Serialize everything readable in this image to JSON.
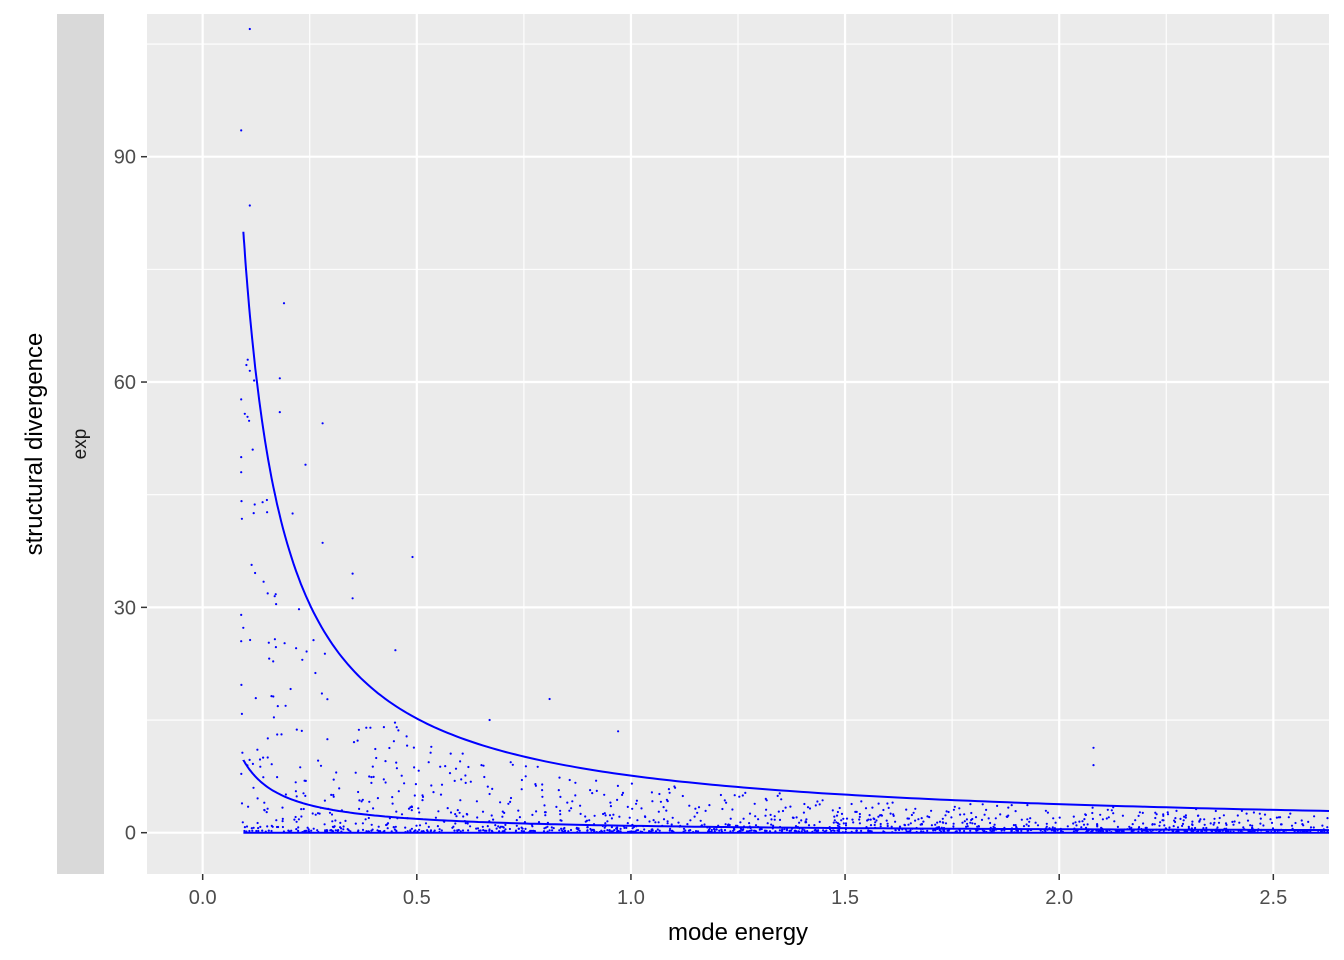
{
  "chart_data": {
    "type": "scatter",
    "facet_strip": "exp",
    "xlabel": "mode energy",
    "ylabel": "structural divergence",
    "xlim": [
      -0.13,
      2.63
    ],
    "ylim": [
      -5.5,
      109
    ],
    "x_ticks": [
      0.0,
      0.5,
      1.0,
      1.5,
      2.0,
      2.5
    ],
    "x_tick_labels": [
      "0.0",
      "0.5",
      "1.0",
      "1.5",
      "2.0",
      "2.5"
    ],
    "y_ticks": [
      0,
      30,
      60,
      90
    ],
    "y_tick_labels": [
      "0",
      "30",
      "60",
      "90"
    ],
    "grid": true,
    "background": "#ebebeb",
    "strip_color": "#d9d9d9",
    "point_color": "#0000ff",
    "line_color": "#0000ff",
    "curves": [
      {
        "x_start": 0.095,
        "x_end": 2.63,
        "formula": "7.6 / x",
        "note_y_at_start": 80
      },
      {
        "x_start": 0.095,
        "x_end": 2.63,
        "formula": "0.92 / x",
        "note_y_at_start": 9.7
      },
      {
        "x_start": 0.095,
        "x_end": 2.63,
        "formula": "0",
        "note_y_at_start": 0
      }
    ],
    "highlight_points": [
      {
        "x": 0.11,
        "y": 107
      },
      {
        "x": 0.09,
        "y": 93.5
      },
      {
        "x": 0.11,
        "y": 83.5
      },
      {
        "x": 0.19,
        "y": 70.5
      },
      {
        "x": 0.18,
        "y": 60.5
      },
      {
        "x": 0.11,
        "y": 61.5
      },
      {
        "x": 0.12,
        "y": 60.2
      },
      {
        "x": 0.18,
        "y": 56
      },
      {
        "x": 0.28,
        "y": 54.5
      },
      {
        "x": 0.09,
        "y": 50
      },
      {
        "x": 0.09,
        "y": 48
      },
      {
        "x": 0.24,
        "y": 49
      },
      {
        "x": 0.14,
        "y": 44
      },
      {
        "x": 0.15,
        "y": 44.3
      },
      {
        "x": 0.21,
        "y": 42.5
      },
      {
        "x": 0.28,
        "y": 38.6
      },
      {
        "x": 0.49,
        "y": 36.7
      },
      {
        "x": 0.35,
        "y": 34.5
      },
      {
        "x": 0.35,
        "y": 31.2
      },
      {
        "x": 0.09,
        "y": 29
      },
      {
        "x": 0.09,
        "y": 25.5
      },
      {
        "x": 0.45,
        "y": 24.3
      },
      {
        "x": 0.81,
        "y": 17.8
      },
      {
        "x": 0.97,
        "y": 13.5
      },
      {
        "x": 0.67,
        "y": 15
      },
      {
        "x": 2.08,
        "y": 11.3
      },
      {
        "x": 2.08,
        "y": 9
      }
    ],
    "scatter_generation": {
      "n": 1400,
      "x_range": [
        0.09,
        2.63
      ],
      "y_model": "0.3 + heavy-tailed spread scaled as 1.5 / x",
      "seed": 7
    }
  }
}
